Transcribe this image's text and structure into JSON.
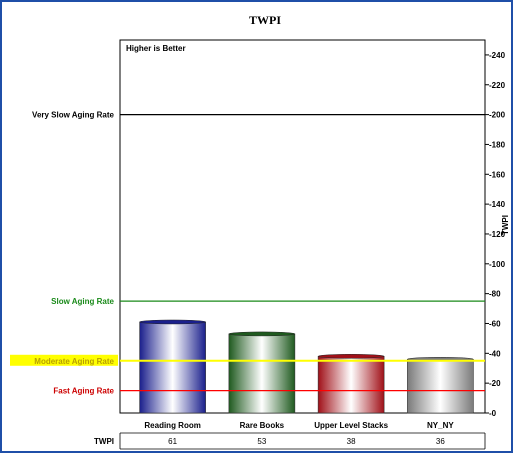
{
  "chart_data": {
    "type": "bar",
    "title": "TWPI",
    "annotation": "Higher is Better",
    "ylabel": "TWPI",
    "ylim": [
      0,
      250
    ],
    "yticks": [
      0,
      20,
      40,
      60,
      80,
      100,
      120,
      140,
      160,
      180,
      200,
      220,
      240
    ],
    "categories": [
      "Reading Room",
      "Rare Books",
      "Upper Level Stacks",
      "NY_NY"
    ],
    "values": [
      61,
      53,
      38,
      36
    ],
    "bar_colors": [
      "#1a1f8c",
      "#1f5a1f",
      "#a01018",
      "#7a7a7a"
    ],
    "reference_lines": [
      {
        "label": "Very Slow Aging Rate",
        "value": 200,
        "color": "#000000"
      },
      {
        "label": "Slow Aging Rate",
        "value": 75,
        "color": "#1a8a1a"
      },
      {
        "label": "Moderate Aging Rate",
        "value": 35,
        "color": "#ffff00",
        "label_color": "#b8a000",
        "label_bg": "#ffff00"
      },
      {
        "label": "Fast Aging Rate",
        "value": 15,
        "color": "#ff0000",
        "label_color": "#cc0000"
      }
    ],
    "table": {
      "row_label": "TWPI",
      "values": [
        "61",
        "53",
        "38",
        "36"
      ]
    },
    "grid": false
  }
}
